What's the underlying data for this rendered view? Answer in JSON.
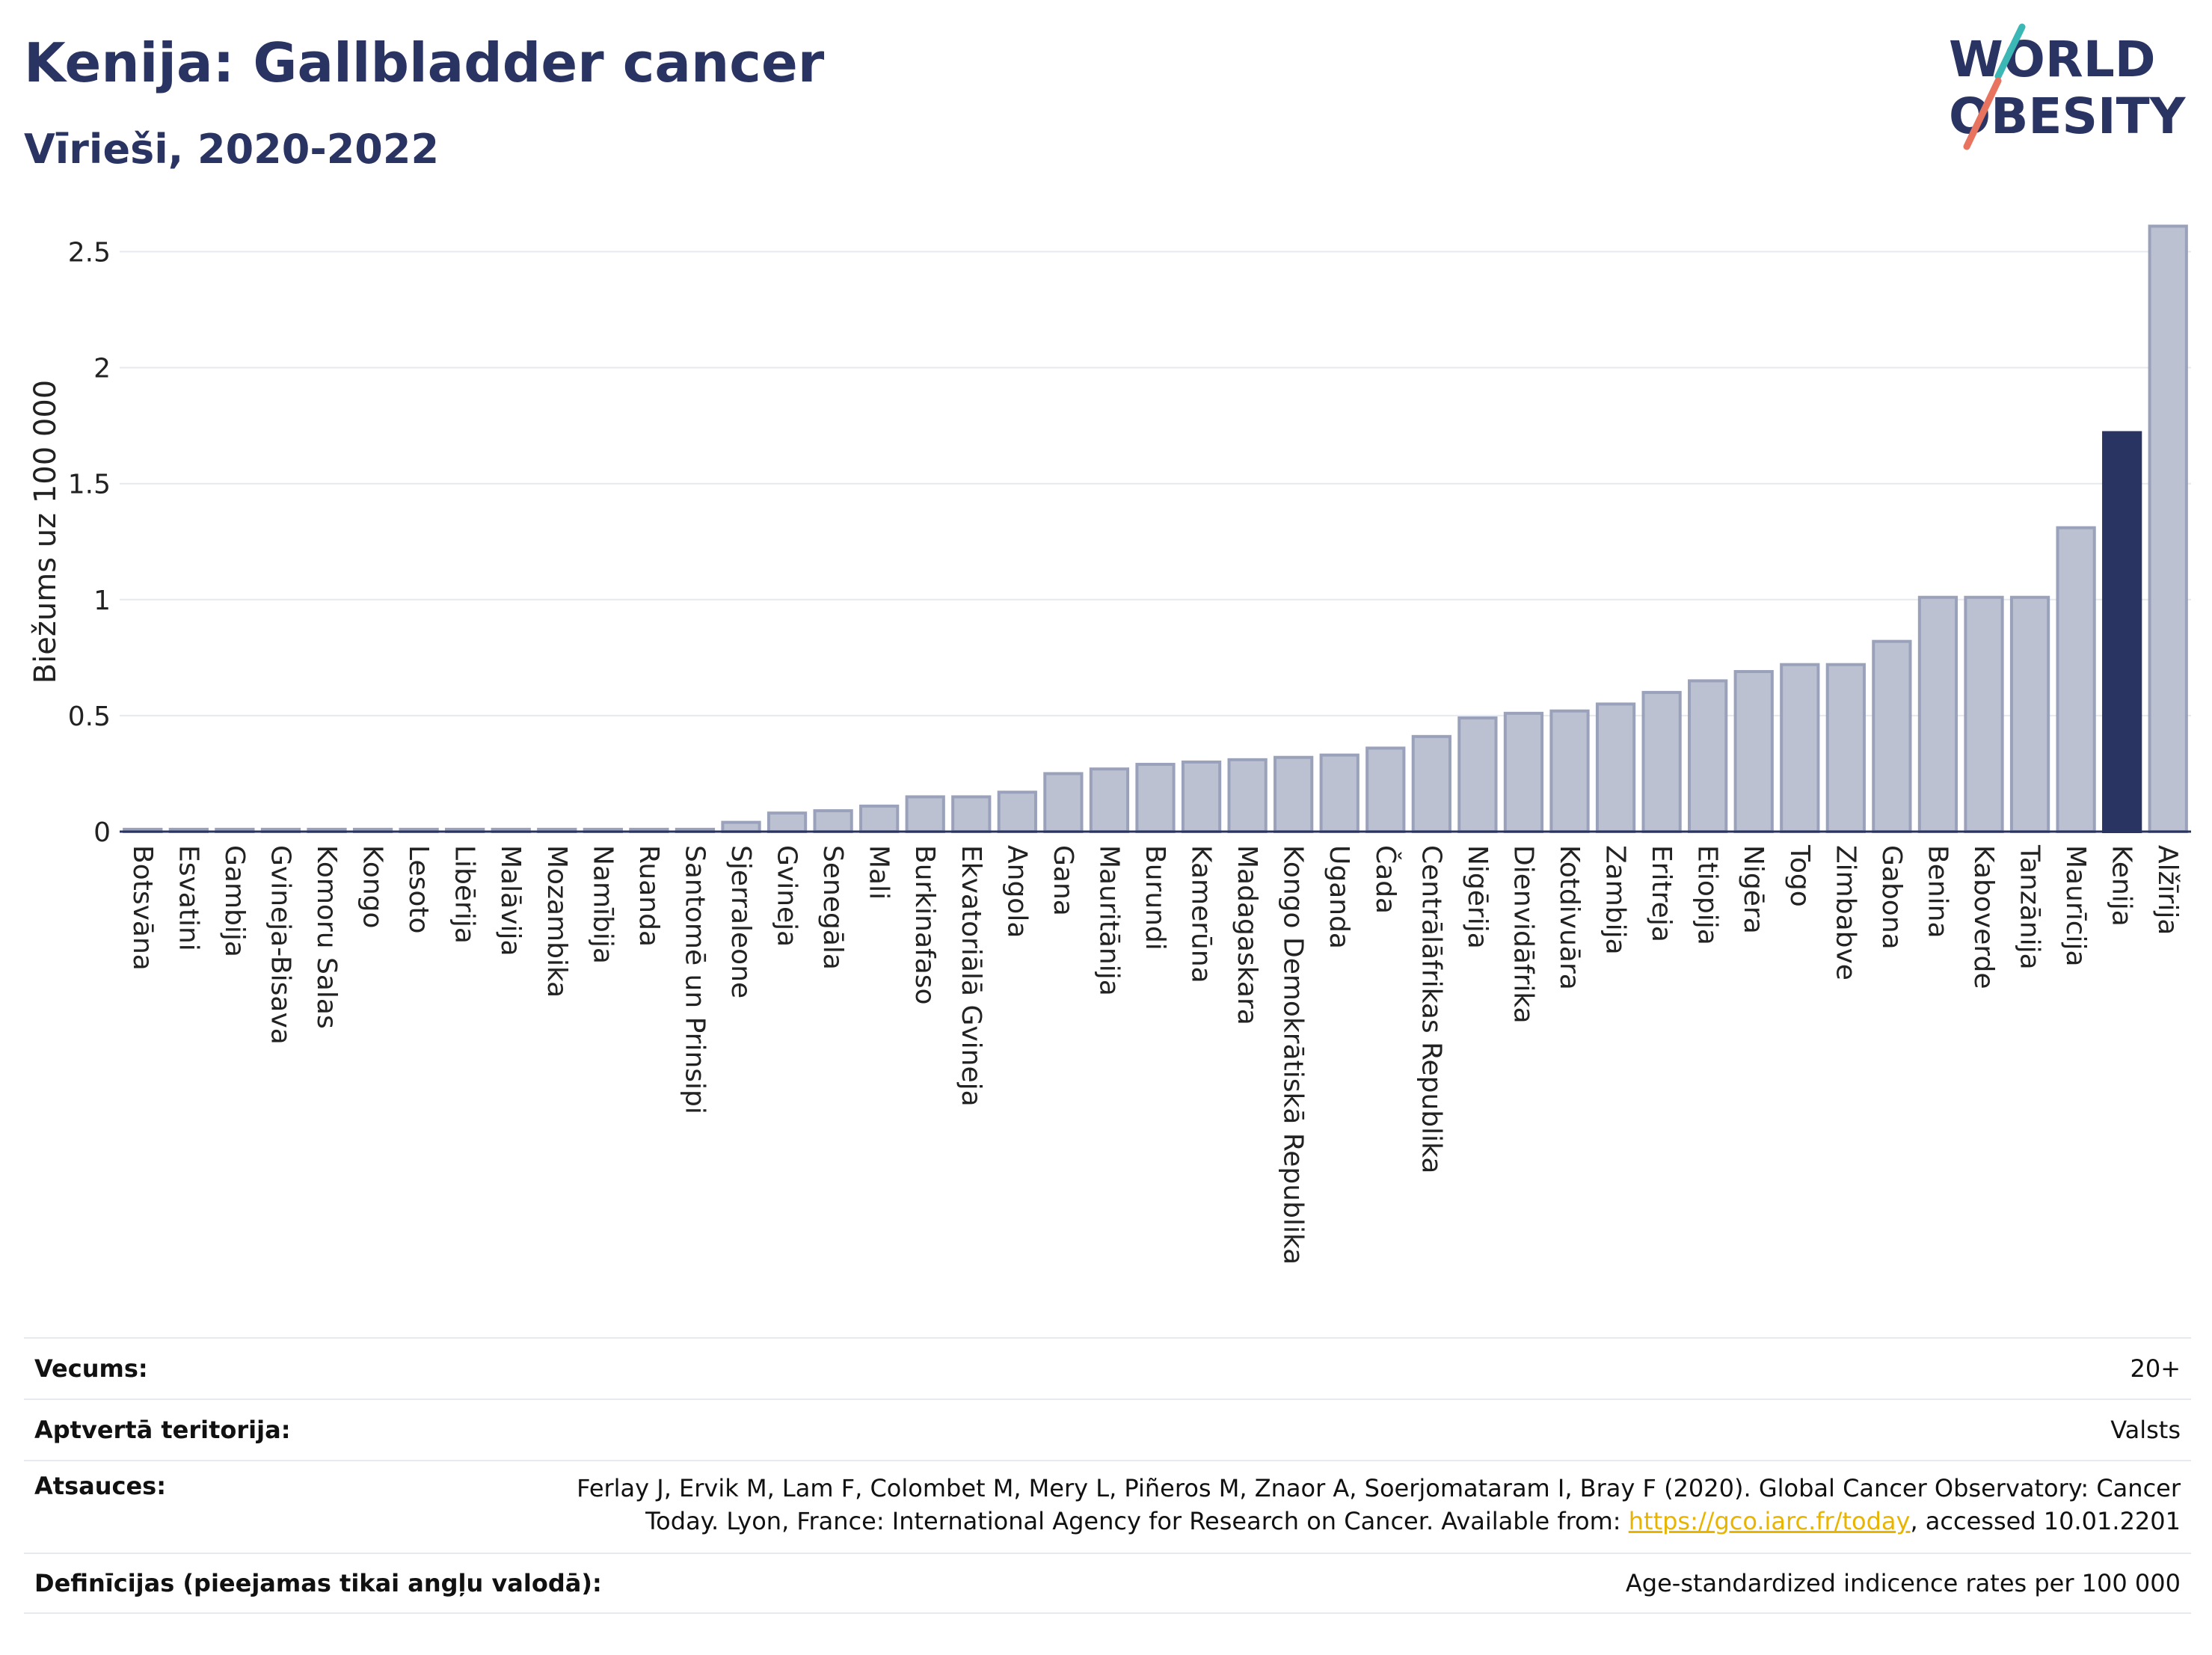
{
  "header": {
    "title": "Kenija: Gallbladder cancer",
    "subtitle": "Vīrieši, 2020-2022"
  },
  "logo": {
    "line1": "WORLD",
    "line2": "OBESITY"
  },
  "colors": {
    "bar": "#bcc1d1",
    "bar_stroke": "#9aa1ba",
    "highlight": "#2a3462",
    "grid": "#e6e9ee",
    "text": "#2a3462"
  },
  "chart_data": {
    "type": "bar",
    "ylabel": "Biežums uz 100 000",
    "ylim": [
      0,
      2.65
    ],
    "yticks": [
      0,
      0.5,
      1,
      1.5,
      2,
      2.5
    ],
    "ytick_labels": [
      "0",
      "0.5",
      "1",
      "1.5",
      "2",
      "2.5"
    ],
    "highlight": "Kenija",
    "categories": [
      "Botsvāna",
      "Esvatini",
      "Gambija",
      "Gvineja-Bisava",
      "Komoru Salas",
      "Kongo",
      "Lesoto",
      "Libērija",
      "Malāvija",
      "Mozambika",
      "Namībija",
      "Ruanda",
      "Santomē un Prinsipi",
      "Sjerraleone",
      "Gvineja",
      "Senegāla",
      "Mali",
      "Burkinafaso",
      "Ekvatoriālā Gvineja",
      "Angola",
      "Gana",
      "Mauritānija",
      "Burundi",
      "Kamerūna",
      "Madagaskara",
      "Kongo Demokrātiskā Republika",
      "Uganda",
      "Čada",
      "Centrālāfrikas Republika",
      "Nigērija",
      "Dienvidāfrika",
      "Kotdivuāra",
      "Zambija",
      "Eritreja",
      "Etiopija",
      "Nigēra",
      "Togo",
      "Zimbabve",
      "Gabona",
      "Benina",
      "Kaboverde",
      "Tanzānija",
      "Maurīcija",
      "Kenija",
      "Alžīrija"
    ],
    "values": [
      0.01,
      0.01,
      0.01,
      0.01,
      0.01,
      0.01,
      0.01,
      0.01,
      0.01,
      0.01,
      0.01,
      0.01,
      0.01,
      0.04,
      0.08,
      0.09,
      0.11,
      0.15,
      0.15,
      0.17,
      0.25,
      0.27,
      0.29,
      0.3,
      0.31,
      0.32,
      0.33,
      0.36,
      0.41,
      0.49,
      0.51,
      0.52,
      0.55,
      0.6,
      0.65,
      0.69,
      0.72,
      0.72,
      0.82,
      1.01,
      1.01,
      1.01,
      1.31,
      1.72,
      2.61
    ]
  },
  "info": {
    "rows": [
      {
        "key": "Vecums:",
        "value": "20+"
      },
      {
        "key": "Aptvertā teritorija:",
        "value": "Valsts"
      },
      {
        "key": "Atsauces:",
        "value_line1": "Ferlay J, Ervik M, Lam F, Colombet M, Mery L, Piñeros M, Znaor A, Soerjomataram I, Bray F (2020). Global Cancer Observatory: Cancer",
        "value_line2_pre": "Today. Lyon, France: International Agency for Research on Cancer. Available from: ",
        "link": "https://gco.iarc.fr/today",
        "value_line2_post": ", accessed 10.01.2201"
      },
      {
        "key": "Definīcijas (pieejamas tikai angļu valodā):",
        "value": "Age-standardized indicence rates per 100 000"
      }
    ]
  }
}
